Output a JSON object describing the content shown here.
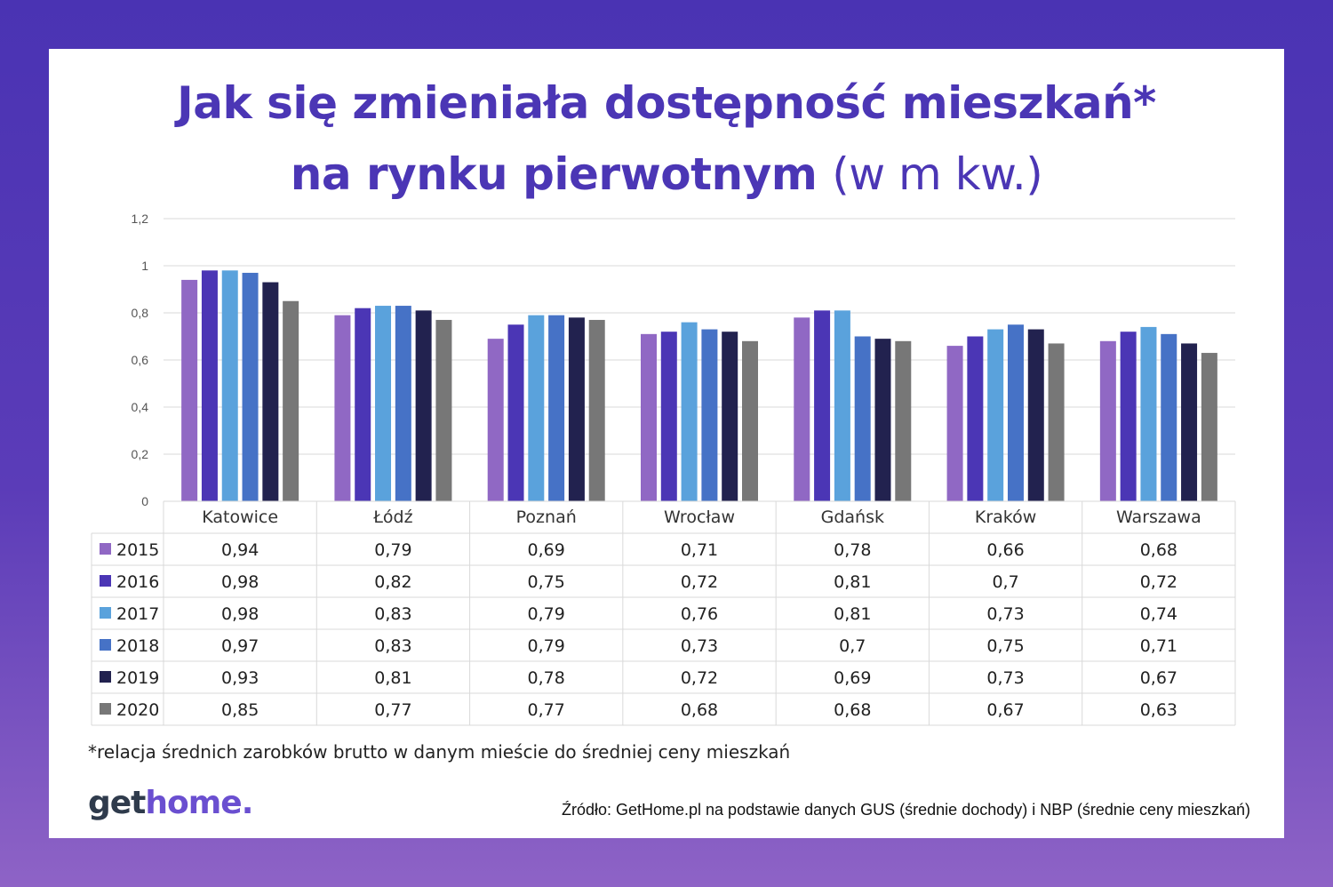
{
  "title": {
    "line1": "Jak się zmieniała dostępność mieszkań*",
    "line2_bold": "na rynku pierwotnym",
    "line2_unit": "(w m kw.)"
  },
  "chart_data": {
    "type": "bar",
    "categories": [
      "Katowice",
      "Łódź",
      "Poznań",
      "Wrocław",
      "Gdańsk",
      "Kraków",
      "Warszawa"
    ],
    "series": [
      {
        "name": "2015",
        "color": "#9068c4",
        "values": [
          0.94,
          0.79,
          0.69,
          0.71,
          0.78,
          0.66,
          0.68
        ],
        "labels": [
          "0,94",
          "0,79",
          "0,69",
          "0,71",
          "0,78",
          "0,66",
          "0,68"
        ]
      },
      {
        "name": "2016",
        "color": "#4b36b5",
        "values": [
          0.98,
          0.82,
          0.75,
          0.72,
          0.81,
          0.7,
          0.72
        ],
        "labels": [
          "0,98",
          "0,82",
          "0,75",
          "0,72",
          "0,81",
          "0,7",
          "0,72"
        ]
      },
      {
        "name": "2017",
        "color": "#5aa2dc",
        "values": [
          0.98,
          0.83,
          0.79,
          0.76,
          0.81,
          0.73,
          0.74
        ],
        "labels": [
          "0,98",
          "0,83",
          "0,79",
          "0,76",
          "0,81",
          "0,73",
          "0,74"
        ]
      },
      {
        "name": "2018",
        "color": "#4672c6",
        "values": [
          0.97,
          0.83,
          0.79,
          0.73,
          0.7,
          0.75,
          0.71
        ],
        "labels": [
          "0,97",
          "0,83",
          "0,79",
          "0,73",
          "0,7",
          "0,75",
          "0,71"
        ]
      },
      {
        "name": "2019",
        "color": "#22224f",
        "values": [
          0.93,
          0.81,
          0.78,
          0.72,
          0.69,
          0.73,
          0.67
        ],
        "labels": [
          "0,93",
          "0,81",
          "0,78",
          "0,72",
          "0,69",
          "0,73",
          "0,67"
        ]
      },
      {
        "name": "2020",
        "color": "#777777",
        "values": [
          0.85,
          0.77,
          0.77,
          0.68,
          0.68,
          0.67,
          0.63
        ],
        "labels": [
          "0,85",
          "0,77",
          "0,77",
          "0,68",
          "0,68",
          "0,67",
          "0,63"
        ]
      }
    ],
    "yticks": [
      "0",
      "0,2",
      "0,4",
      "0,6",
      "0,8",
      "1",
      "1,2"
    ],
    "ylim": [
      0,
      1.2
    ],
    "grid": true,
    "legend": "data-table"
  },
  "footnote": "*relacja średnich zarobków brutto w danym mieście do średniej ceny mieszkań",
  "logo": {
    "part1": "get",
    "part2": "home."
  },
  "source": "Źródło: GetHome.pl na podstawie danych GUS (średnie dochody) i NBP (średnie ceny mieszkań)"
}
